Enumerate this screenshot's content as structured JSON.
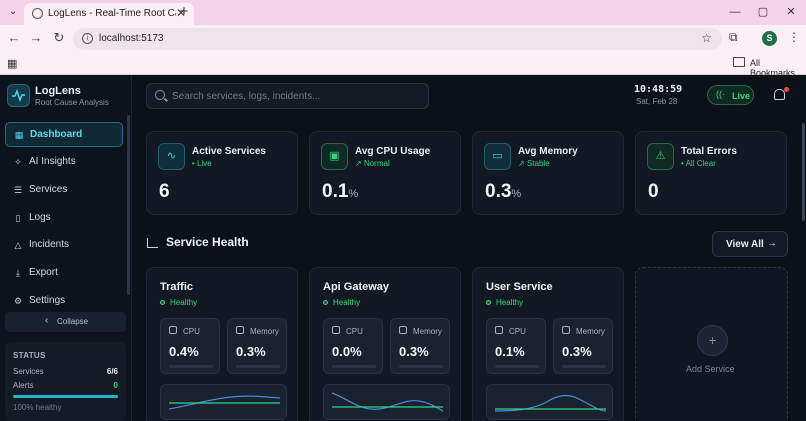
{
  "browser": {
    "tab_title": "LogLens - Real-Time Root Cause",
    "url": "localhost:5173",
    "bookmarks_label": "All Bookmarks",
    "profile_initial": "S"
  },
  "brand": {
    "name": "LogLens",
    "subtitle": "Root Cause Analysis"
  },
  "sidebar": {
    "items": [
      {
        "label": "Dashboard",
        "icon": "grid-icon",
        "active": true
      },
      {
        "label": "AI Insights",
        "icon": "sparkle-icon"
      },
      {
        "label": "Services",
        "icon": "server-icon"
      },
      {
        "label": "Logs",
        "icon": "file-icon"
      },
      {
        "label": "Incidents",
        "icon": "alert-triangle-icon"
      },
      {
        "label": "Export",
        "icon": "download-icon"
      },
      {
        "label": "Settings",
        "icon": "gear-icon"
      }
    ],
    "collapse_label": "Collapse",
    "status": {
      "title": "STATUS",
      "services_label": "Services",
      "services_value": "6/6",
      "alerts_label": "Alerts",
      "alerts_value": "0",
      "health_fraction": 1.0,
      "health_text": "100% healthy"
    }
  },
  "header": {
    "search_placeholder": "Search services, logs, incidents...",
    "time": "10:48:59",
    "date": "Sat, Feb 28",
    "live_label": "Live"
  },
  "stats": [
    {
      "title": "Active Services",
      "sub": "Live",
      "value": "6",
      "unit": "",
      "icon": "activity-icon",
      "accent": "cyan"
    },
    {
      "title": "Avg CPU Usage",
      "sub": "Normal",
      "value": "0.1",
      "unit": "%",
      "icon": "cpu-icon",
      "accent": "green"
    },
    {
      "title": "Avg Memory",
      "sub": "Stable",
      "value": "0.3",
      "unit": "%",
      "icon": "memory-icon",
      "accent": "cyan"
    },
    {
      "title": "Total Errors",
      "sub": "All Clear",
      "value": "0",
      "unit": "",
      "icon": "alert-triangle-icon",
      "accent": "green"
    }
  ],
  "service_health": {
    "title": "Service Health",
    "view_all_label": "View All",
    "cpu_label": "CPU",
    "memory_label": "Memory",
    "services": [
      {
        "name": "Traffic",
        "status": "Healthy",
        "cpu": "0.4%",
        "memory": "0.3%"
      },
      {
        "name": "Api Gateway",
        "status": "Healthy",
        "cpu": "0.0%",
        "memory": "0.3%"
      },
      {
        "name": "User Service",
        "status": "Healthy",
        "cpu": "0.1%",
        "memory": "0.3%"
      }
    ],
    "add_label": "Add Service"
  },
  "colors": {
    "accent_cyan": "#4fd3e6",
    "accent_green": "#32d583",
    "alert_red": "#f04438",
    "background": "#0b1019"
  }
}
